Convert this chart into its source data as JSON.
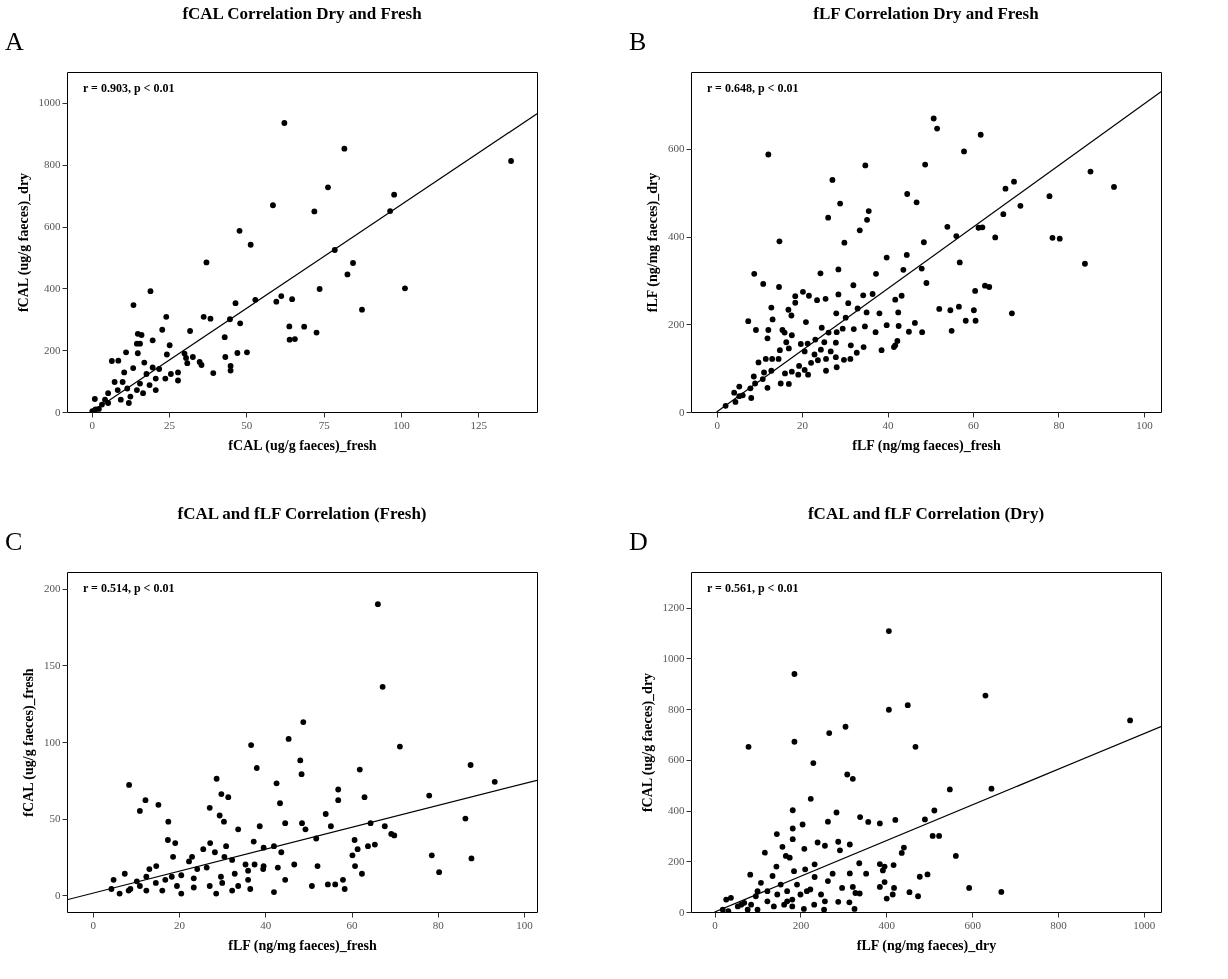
{
  "chart_data": [
    {
      "type": "scatter",
      "title": "fCAL Correlation Dry and Fresh",
      "xlabel": "fCAL (ug/g faeces)_fresh",
      "ylabel": "fCAL (ug/g faeces)_dry",
      "annotations": [
        "A",
        "r = 0.903, p < 0.01"
      ],
      "xlim": [
        -8,
        144
      ],
      "xticks": [
        0,
        25,
        50,
        75,
        100,
        125
      ],
      "ylim": [
        0,
        1100
      ],
      "yticks": [
        0,
        200,
        400,
        600,
        800,
        1000
      ],
      "grid": false,
      "series": [
        {
          "marker": "circle",
          "color": "#000000",
          "x": [
            62.3,
            81.7,
            135.6,
            76.4,
            97.8,
            96.5,
            72,
            58.6,
            47.8,
            51.4,
            37.1,
            78.6,
            84.5,
            82.7,
            73.7,
            101.3,
            87.4,
            19,
            13.5,
            24.1,
            36.2,
            38.4,
            44.7,
            46.5,
            52.9,
            59.7,
            61.3,
            64.8,
            63.9,
            68.7,
            72.7,
            64,
            65.7,
            48,
            43,
            43.2,
            47.1,
            50.2,
            44.9,
            44.9,
            39.3,
            22.8,
            31.8,
            14.9,
            16.1,
            19.7,
            14.6,
            15.6,
            25.2,
            11.1,
            14.9,
            24.3,
            30,
            32.7,
            6.5,
            8.6,
            10.5,
            13.4,
            17,
            19.7,
            30.9,
            34.9,
            35.5,
            25.6,
            27.9,
            23.8,
            20.7,
            18.7,
            15.6,
            11.5,
            8.4,
            5.3,
            4.3,
            1,
            3.3,
            2.3,
            0.2,
            9.4,
            12.5,
            16.6,
            20.7,
            7.4,
            10,
            5.3,
            1.2,
            12,
            14.6,
            17.7,
            21.8,
            27.9,
            30.5
          ],
          "values": [
            935,
            852,
            812,
            727,
            703,
            650,
            649,
            669,
            586,
            541,
            484,
            524,
            482,
            445,
            398,
            400,
            331,
            391,
            346,
            308,
            308,
            302,
            300,
            352,
            363,
            357,
            375,
            365,
            277,
            276,
            257,
            234,
            236,
            287,
            242,
            178,
            191,
            193,
            149,
            134,
            126,
            266,
            262,
            253,
            249,
            232,
            221,
            221,
            216,
            193,
            190,
            186,
            189,
            178,
            165,
            166,
            128,
            142,
            160,
            144,
            158,
            162,
            152,
            123,
            102,
            108,
            108,
            87,
            92,
            76,
            71,
            61,
            40,
            42,
            24,
            10,
            3,
            40,
            50,
            61,
            71,
            97,
            97,
            29,
            8,
            29,
            71,
            123,
            139,
            128,
            175
          ]
        },
        {
          "type": "line",
          "color": "#000000",
          "x": [
            0,
            144
          ],
          "values": [
            0,
            965
          ]
        }
      ]
    },
    {
      "type": "scatter",
      "title": "fLF Correlation Dry and Fresh",
      "xlabel": "fLF (ng/mg faeces)_fresh",
      "ylabel": "fLF (ng/mg faeces)_dry",
      "annotations": [
        "B",
        "r = 0.648, p < 0.01"
      ],
      "xlim": [
        -6,
        104
      ],
      "xticks": [
        0,
        20,
        40,
        60,
        80,
        100
      ],
      "ylim": [
        0,
        775
      ],
      "yticks": [
        0,
        200,
        400,
        600
      ],
      "grid": false,
      "series": [
        {
          "marker": "circle",
          "color": "#000000",
          "x": [
            50.8,
            51.6,
            61.8,
            12.1,
            57.9,
            34.8,
            48.8,
            87.5,
            93,
            27.1,
            69.6,
            67.6,
            44.6,
            77.9,
            46.8,
            28.9,
            71.1,
            35.6,
            67.1,
            35.2,
            26.1,
            33.5,
            54,
            61.3,
            62.2,
            56.1,
            65.2,
            78.6,
            80.3,
            14.7,
            29.9,
            48.5,
            39.8,
            44.5,
            56.9,
            86.2,
            43.7,
            48,
            8.8,
            24.3,
            28.5,
            37.3,
            10.9,
            32,
            49.1,
            62.8,
            63.8,
            60.5,
            14.6,
            12.8,
            13.1,
            7.4,
            9.2,
            12.1,
            11.9,
            20.2,
            18.4,
            21.6,
            25.5,
            23.5,
            28.5,
            34.3,
            36.5,
            41.8,
            43.3,
            18.4,
            16.8,
            17.5,
            20.9,
            30.8,
            33,
            52.1,
            54.7,
            56.7,
            60.2,
            69.1,
            35.1,
            38.1,
            42.5,
            28,
            30.2,
            55,
            58.3,
            60.6,
            46.4,
            48.1,
            45,
            42.6,
            39.8,
            37.2,
            34.7,
            32.1,
            29.5,
            28.1,
            26.2,
            24.6,
            15.4,
            15.9,
            17.6,
            16.3,
            14.8,
            16.9,
            19.7,
            21.3,
            23.1,
            25.2,
            27.9,
            31.4,
            34.4,
            38.6,
            41.8,
            42.3,
            41.5,
            14.5,
            13,
            11.5,
            9.8,
            12.8,
            11.1,
            8.7,
            10.8,
            9,
            7.9,
            11.9,
            15,
            16.9,
            16,
            17.6,
            19.3,
            22.1,
            23.7,
            20.6,
            21.4,
            19.1,
            25.6,
            25.6,
            27.9,
            28.1,
            29.8,
            31.3,
            5.3,
            4.1,
            5.3,
            4.4,
            8.1,
            6.1,
            2.1,
            20.6,
            22.9,
            24.4,
            26.7,
            32.8
          ],
          "values": [
            669,
            646,
            632,
            587,
            594,
            562,
            564,
            548,
            513,
            529,
            525,
            509,
            497,
            492,
            478,
            475,
            470,
            458,
            451,
            438,
            443,
            414,
            422,
            420,
            421,
            401,
            398,
            397,
            395,
            389,
            386,
            387,
            352,
            358,
            341,
            338,
            324,
            327,
            315,
            316,
            325,
            315,
            292,
            289,
            294,
            288,
            285,
            276,
            285,
            238,
            211,
            207,
            187,
            187,
            168,
            274,
            264,
            265,
            258,
            255,
            268,
            266,
            269,
            256,
            265,
            249,
            233,
            220,
            205,
            248,
            236,
            235,
            232,
            240,
            232,
            225,
            227,
            225,
            227,
            225,
            215,
            185,
            208,
            208,
            203,
            182,
            183,
            196,
            198,
            182,
            195,
            189,
            190,
            182,
            181,
            192,
            187,
            181,
            175,
            159,
            141,
            145,
            155,
            156,
            165,
            159,
            158,
            152,
            148,
            141,
            152,
            162,
            148,
            121,
            121,
            121,
            113,
            94,
            90,
            81,
            75,
            65,
            54,
            55,
            65,
            64,
            88,
            92,
            105,
            112,
            118,
            96,
            85,
            85,
            94,
            121,
            125,
            102,
            119,
            121,
            58,
            44,
            36,
            23,
            32,
            38,
            14,
            138,
            131,
            142,
            138,
            135
          ]
        },
        {
          "type": "line",
          "color": "#000000",
          "x": [
            0,
            104
          ],
          "values": [
            0,
            730
          ]
        }
      ]
    },
    {
      "type": "scatter",
      "title": "fCAL and fLF Correlation (Fresh)",
      "xlabel": "fLF (ng/mg faeces)_fresh",
      "ylabel": "fCAL (ug/g faeces)_fresh",
      "annotations": [
        "C",
        "r = 0.514, p < 0.01"
      ],
      "xlim": [
        -6,
        103
      ],
      "xticks": [
        0,
        20,
        40,
        60,
        80,
        100
      ],
      "ylim": [
        -11,
        211
      ],
      "yticks": [
        0,
        50,
        100,
        150,
        200
      ],
      "grid": false,
      "series": [
        {
          "marker": "circle",
          "color": "#000000",
          "x": [
            66.1,
            67.2,
            48.8,
            45.4,
            36.7,
            71.2,
            48.1,
            38,
            61.9,
            87.6,
            48.4,
            28.7,
            93.2,
            42.6,
            8.4,
            56.9,
            29.8,
            31.4,
            78,
            63,
            12.2,
            56.9,
            15.2,
            43.4,
            27.1,
            10.9,
            54,
            29.4,
            30.4,
            17.5,
            86.4,
            44.6,
            48.5,
            64.4,
            38.7,
            55.2,
            67.7,
            33.7,
            49.3,
            69.2,
            69.9,
            51.8,
            17.4,
            60.7,
            37.3,
            19.1,
            27.2,
            63.8,
            65.4,
            30.9,
            39.6,
            42,
            61.4,
            43.7,
            28.3,
            60.2,
            78.6,
            18.6,
            23,
            25.6,
            30.5,
            32.3,
            87.8,
            60.8,
            52.1,
            46.7,
            13.1,
            14.7,
            35.4,
            37.5,
            39.5,
            42.9,
            62.4,
            80.3,
            7.4,
            10.2,
            4.8,
            44.6,
            54.5,
            56.2,
            58,
            58.4,
            50.8,
            42,
            36.5,
            6.2,
            4.3,
            8.3,
            12.4,
            16.1,
            20.5,
            23.4,
            28.6,
            32.3,
            19.5,
            23.4,
            27.1,
            30,
            33.7,
            16.8,
            20.5,
            22.3,
            24.2,
            26.4,
            29.7,
            32.9,
            36,
            39.6,
            12.4,
            14.6,
            18.3,
            36,
            8.7,
            10.9
          ],
          "values": [
            190,
            136,
            113,
            102,
            98,
            97,
            88,
            83,
            82,
            85,
            79,
            76,
            74,
            73,
            72,
            69,
            66,
            64,
            65,
            64,
            62,
            62,
            59,
            60,
            57,
            55,
            53,
            52,
            48,
            48,
            50,
            47,
            47,
            47,
            45,
            45,
            45,
            43,
            43,
            40,
            39,
            37,
            36,
            36,
            35,
            34,
            34,
            32,
            33,
            32,
            31,
            32,
            30,
            28,
            28,
            26,
            26,
            25,
            25,
            30,
            25,
            23,
            24,
            19,
            19,
            20,
            17,
            19,
            20,
            20,
            17,
            18,
            14,
            15,
            14,
            9,
            10,
            10,
            7,
            7,
            10,
            4,
            6,
            2,
            4,
            1,
            4,
            3,
            3,
            3,
            1,
            5,
            1,
            3,
            6,
            11,
            6,
            8,
            6,
            10,
            13,
            22,
            17,
            18,
            12,
            14,
            10,
            19,
            12,
            8,
            12,
            16,
            4,
            6
          ]
        },
        {
          "type": "line",
          "color": "#000000",
          "x": [
            -6,
            103
          ],
          "values": [
            -3,
            75
          ]
        }
      ]
    },
    {
      "type": "scatter",
      "title": "fCAL and fLF Correlation (Dry)",
      "xlabel": "fLF (ng/mg faeces)_dry",
      "ylabel": "fCAL (ug/g faeces)_dry",
      "annotations": [
        "D",
        "r = 0.561, p < 0.01"
      ],
      "xlim": [
        -55,
        1040
      ],
      "xticks": [
        0,
        200,
        400,
        600,
        800,
        1000
      ],
      "ylim": [
        0,
        1340
      ],
      "yticks": [
        0,
        200,
        400,
        600,
        800,
        1000,
        1200
      ],
      "grid": false,
      "series": [
        {
          "marker": "circle",
          "color": "#000000",
          "x": [
            406,
            186,
            631,
            450,
            406,
            968,
            305,
            267,
            186,
            79,
            468,
            230,
            309,
            322,
            548,
            645,
            224,
            182,
            512,
            284,
            339,
            421,
            490,
            358,
            264,
            385,
            205,
            182,
            145,
            508,
            523,
            182,
            240,
            288,
            441,
            158,
            257,
            315,
            209,
            292,
            436,
            117,
            166,
            175,
            562,
            233,
            337,
            385,
            417,
            396,
            144,
            315,
            353,
            392,
            275,
            83,
            496,
            478,
            185,
            211,
            396,
            385,
            418,
            593,
            297,
            322,
            264,
            233,
            454,
            474,
            668,
            401,
            415,
            338,
            328,
            288,
            314,
            326,
            255,
            208,
            232,
            257,
            248,
            223,
            200,
            181,
            169,
            154,
            135,
            123,
            108,
            96,
            85,
            69,
            54,
            38,
            27,
            19,
            32,
            62,
            100,
            123,
            146,
            162,
            181,
            192,
            215,
            138,
            100,
            77,
            169
          ],
          "values": [
            1107,
            938,
            853,
            815,
            797,
            755,
            730,
            705,
            671,
            651,
            651,
            587,
            542,
            525,
            483,
            486,
            446,
            401,
            400,
            392,
            374,
            363,
            365,
            355,
            356,
            349,
            345,
            329,
            307,
            300,
            300,
            287,
            274,
            277,
            254,
            257,
            261,
            266,
            249,
            243,
            233,
            234,
            221,
            214,
            221,
            188,
            192,
            189,
            185,
            179,
            179,
            152,
            151,
            164,
            151,
            147,
            148,
            139,
            161,
            168,
            118,
            99,
            95,
            95,
            95,
            99,
            122,
            138,
            78,
            62,
            79,
            53,
            69,
            73,
            75,
            40,
            38,
            12,
            9,
            12,
            29,
            42,
            69,
            89,
            69,
            49,
            82,
            108,
            142,
            82,
            115,
            62,
            29,
            36,
            22,
            56,
            49,
            9,
            3,
            29,
            82,
            42,
            69,
            29,
            22,
            108,
            82,
            22,
            9,
            9,
            42
          ]
        },
        {
          "type": "line",
          "color": "#000000",
          "x": [
            0,
            1040
          ],
          "values": [
            0,
            731
          ]
        }
      ]
    }
  ]
}
